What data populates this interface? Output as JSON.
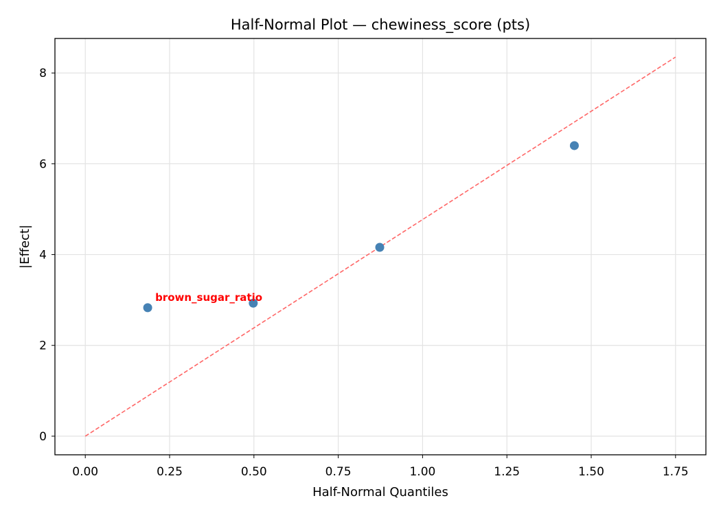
{
  "chart_data": {
    "type": "scatter",
    "title": "Half-Normal Plot — chewiness_score (pts)",
    "xlabel": "Half-Normal Quantiles",
    "ylabel": "|Effect|",
    "xlim": [
      -0.09,
      1.84
    ],
    "ylim": [
      -0.41,
      8.76
    ],
    "xticks": [
      0.0,
      0.25,
      0.5,
      0.75,
      1.0,
      1.25,
      1.5,
      1.75
    ],
    "xtick_labels": [
      "0.00",
      "0.25",
      "0.50",
      "0.75",
      "1.00",
      "1.25",
      "1.50",
      "1.75"
    ],
    "yticks": [
      0,
      2,
      4,
      6,
      8
    ],
    "ytick_labels": [
      "0",
      "2",
      "4",
      "6",
      "8"
    ],
    "grid": true,
    "points": [
      {
        "x": 0.185,
        "y": 2.83
      },
      {
        "x": 0.498,
        "y": 2.93
      },
      {
        "x": 0.873,
        "y": 4.16
      },
      {
        "x": 1.45,
        "y": 6.4
      }
    ],
    "reference_line": {
      "x": [
        0,
        1.75
      ],
      "y": [
        0,
        8.35
      ],
      "style": "dashed",
      "color": "#ff6666"
    },
    "annotations": [
      {
        "text": "brown_sugar_ratio",
        "point_index": 0,
        "color": "#ff0000"
      }
    ],
    "point_color": "#4682b4"
  }
}
